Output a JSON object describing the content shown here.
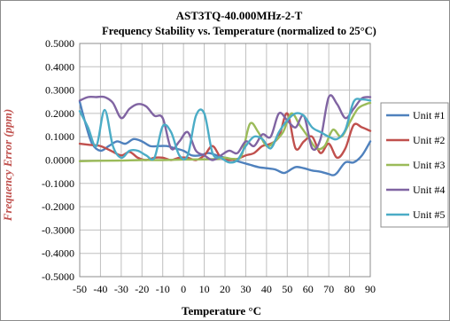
{
  "chart_data": {
    "type": "line",
    "title": "AST3TQ-40.000MHz-2-T",
    "subtitle": "Frequency Stability vs. Temperature  (normalized to 25°C)",
    "xlabel": "Temperature °C",
    "ylabel": "Frequency Error (ppm)",
    "xlim": [
      -50,
      90
    ],
    "ylim": [
      -0.5,
      0.5
    ],
    "x_ticks": [
      "-50",
      "-40",
      "-30",
      "-20",
      "-10",
      "0",
      "10",
      "20",
      "30",
      "40",
      "50",
      "60",
      "70",
      "80",
      "90"
    ],
    "y_ticks": [
      "0.5000",
      "0.4000",
      "0.3000",
      "0.2000",
      "0.1000",
      "0.0000",
      "-0.1000",
      "-0.2000",
      "-0.3000",
      "-0.4000",
      "-0.5000"
    ],
    "grid": true,
    "legend_position": "right",
    "series": [
      {
        "name": "Unit #1",
        "color": "#4f81bd",
        "points": [
          [
            -50,
            0.25
          ],
          [
            -47,
            0.15
          ],
          [
            -44,
            0.07
          ],
          [
            -40,
            0.04
          ],
          [
            -36,
            0.06
          ],
          [
            -32,
            0.08
          ],
          [
            -28,
            0.07
          ],
          [
            -24,
            0.09
          ],
          [
            -20,
            0.08
          ],
          [
            -16,
            0.06
          ],
          [
            -12,
            0.06
          ],
          [
            -8,
            0.06
          ],
          [
            -4,
            0.05
          ],
          [
            0,
            0.04
          ],
          [
            4,
            0.02
          ],
          [
            8,
            0.02
          ],
          [
            12,
            0.03
          ],
          [
            16,
            0.02
          ],
          [
            20,
            0.01
          ],
          [
            24,
            0.0
          ],
          [
            28,
            -0.01
          ],
          [
            32,
            -0.02
          ],
          [
            36,
            -0.03
          ],
          [
            40,
            -0.035
          ],
          [
            44,
            -0.04
          ],
          [
            48,
            -0.055
          ],
          [
            50,
            -0.05
          ],
          [
            54,
            -0.03
          ],
          [
            58,
            -0.035
          ],
          [
            62,
            -0.045
          ],
          [
            66,
            -0.05
          ],
          [
            70,
            -0.06
          ],
          [
            72,
            -0.065
          ],
          [
            74,
            -0.055
          ],
          [
            78,
            -0.01
          ],
          [
            82,
            -0.01
          ],
          [
            86,
            0.02
          ],
          [
            90,
            0.08
          ]
        ]
      },
      {
        "name": "Unit #2",
        "color": "#c0504d",
        "points": [
          [
            -50,
            0.07
          ],
          [
            -45,
            0.065
          ],
          [
            -40,
            0.06
          ],
          [
            -35,
            0.04
          ],
          [
            -30,
            0.02
          ],
          [
            -26,
            0.035
          ],
          [
            -22,
            0.01
          ],
          [
            -18,
            0.0
          ],
          [
            -14,
            0.01
          ],
          [
            -10,
            0.01
          ],
          [
            -6,
            0.0
          ],
          [
            -2,
            0.01
          ],
          [
            2,
            0.01
          ],
          [
            6,
            0.0
          ],
          [
            10,
            0.02
          ],
          [
            14,
            0.06
          ],
          [
            18,
            0.01
          ],
          [
            22,
            0.0
          ],
          [
            26,
            0.005
          ],
          [
            30,
            0.02
          ],
          [
            34,
            0.03
          ],
          [
            38,
            0.06
          ],
          [
            42,
            0.07
          ],
          [
            46,
            0.1
          ],
          [
            50,
            0.2
          ],
          [
            54,
            0.05
          ],
          [
            58,
            0.08
          ],
          [
            62,
            0.1
          ],
          [
            66,
            0.03
          ],
          [
            70,
            0.07
          ],
          [
            74,
            0.01
          ],
          [
            78,
            0.05
          ],
          [
            82,
            0.15
          ],
          [
            86,
            0.14
          ],
          [
            90,
            0.125
          ]
        ]
      },
      {
        "name": "Unit #3",
        "color": "#9bbb59",
        "points": [
          [
            -50,
            -0.005
          ],
          [
            -40,
            -0.003
          ],
          [
            -30,
            -0.002
          ],
          [
            -20,
            0.0
          ],
          [
            -10,
            0.0
          ],
          [
            0,
            0.002
          ],
          [
            10,
            0.003
          ],
          [
            16,
            0.005
          ],
          [
            20,
            0.01
          ],
          [
            24,
            0.005
          ],
          [
            28,
            0.02
          ],
          [
            32,
            0.155
          ],
          [
            36,
            0.12
          ],
          [
            40,
            0.06
          ],
          [
            44,
            0.08
          ],
          [
            48,
            0.12
          ],
          [
            52,
            0.2
          ],
          [
            56,
            0.15
          ],
          [
            60,
            0.1
          ],
          [
            64,
            0.05
          ],
          [
            68,
            0.06
          ],
          [
            72,
            0.13
          ],
          [
            76,
            0.1
          ],
          [
            80,
            0.16
          ],
          [
            84,
            0.22
          ],
          [
            88,
            0.24
          ],
          [
            90,
            0.245
          ]
        ]
      },
      {
        "name": "Unit #4",
        "color": "#8064a2",
        "points": [
          [
            -50,
            0.255
          ],
          [
            -46,
            0.27
          ],
          [
            -42,
            0.27
          ],
          [
            -38,
            0.27
          ],
          [
            -34,
            0.245
          ],
          [
            -30,
            0.18
          ],
          [
            -26,
            0.22
          ],
          [
            -22,
            0.24
          ],
          [
            -18,
            0.23
          ],
          [
            -14,
            0.19
          ],
          [
            -10,
            0.18
          ],
          [
            -6,
            0.05
          ],
          [
            -2,
            0.08
          ],
          [
            2,
            0.12
          ],
          [
            6,
            0.04
          ],
          [
            10,
            0.02
          ],
          [
            14,
            0.0
          ],
          [
            18,
            0.02
          ],
          [
            22,
            0.04
          ],
          [
            26,
            0.03
          ],
          [
            30,
            0.08
          ],
          [
            34,
            0.06
          ],
          [
            38,
            0.11
          ],
          [
            42,
            0.1
          ],
          [
            46,
            0.2
          ],
          [
            50,
            0.17
          ],
          [
            54,
            0.14
          ],
          [
            58,
            0.19
          ],
          [
            62,
            0.05
          ],
          [
            66,
            0.09
          ],
          [
            70,
            0.27
          ],
          [
            74,
            0.24
          ],
          [
            78,
            0.18
          ],
          [
            82,
            0.22
          ],
          [
            86,
            0.265
          ],
          [
            90,
            0.27
          ]
        ]
      },
      {
        "name": "Unit #5",
        "color": "#4bacc6",
        "points": [
          [
            -50,
            0.21
          ],
          [
            -46,
            0.14
          ],
          [
            -42,
            0.06
          ],
          [
            -38,
            0.215
          ],
          [
            -34,
            0.06
          ],
          [
            -30,
            0.01
          ],
          [
            -26,
            0.04
          ],
          [
            -22,
            0.04
          ],
          [
            -18,
            0.02
          ],
          [
            -14,
            0.01
          ],
          [
            -10,
            0.145
          ],
          [
            -6,
            0.12
          ],
          [
            -2,
            0.02
          ],
          [
            2,
            0.02
          ],
          [
            6,
            0.19
          ],
          [
            10,
            0.2
          ],
          [
            14,
            0.03
          ],
          [
            18,
            0.01
          ],
          [
            22,
            -0.01
          ],
          [
            26,
            0.0
          ],
          [
            30,
            0.06
          ],
          [
            34,
            0.1
          ],
          [
            38,
            0.09
          ],
          [
            42,
            0.05
          ],
          [
            46,
            0.12
          ],
          [
            50,
            0.17
          ],
          [
            54,
            0.2
          ],
          [
            58,
            0.19
          ],
          [
            62,
            0.14
          ],
          [
            66,
            0.12
          ],
          [
            70,
            0.1
          ],
          [
            74,
            0.09
          ],
          [
            78,
            0.13
          ],
          [
            82,
            0.25
          ],
          [
            86,
            0.26
          ],
          [
            90,
            0.255
          ]
        ]
      }
    ]
  }
}
